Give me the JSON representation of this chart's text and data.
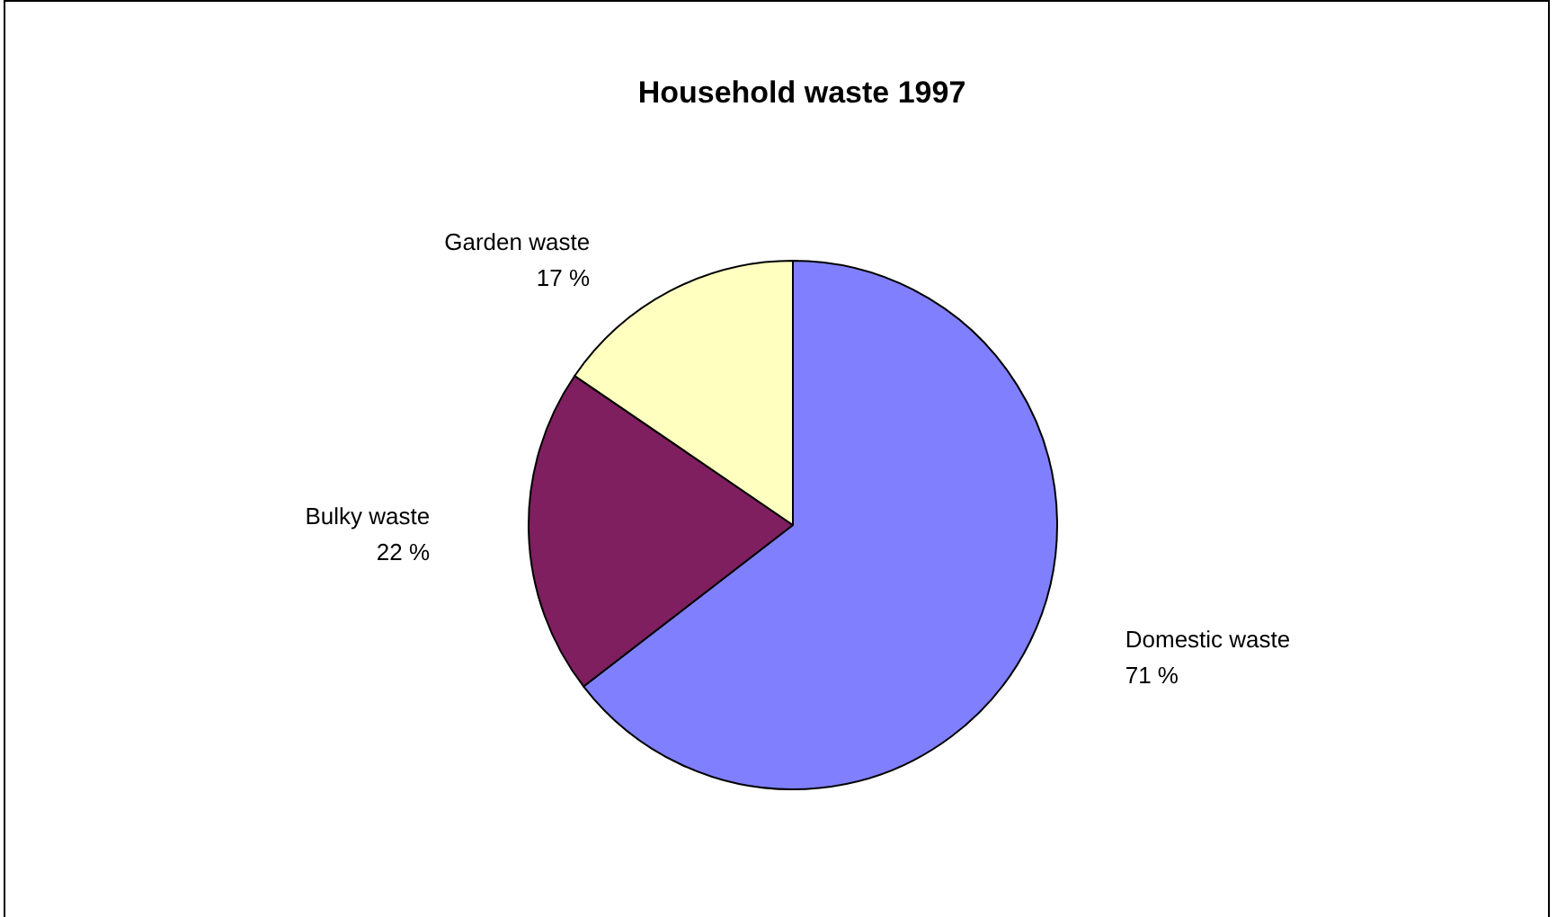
{
  "chart_data": {
    "type": "pie",
    "title": "Household waste 1997",
    "categories": [
      "Domestic waste",
      "Bulky waste",
      "Garden waste"
    ],
    "values": [
      71,
      22,
      17
    ],
    "value_labels": [
      "71 %",
      "22 %",
      "17 %"
    ],
    "colors": [
      "#8080ff",
      "#7f1f5f",
      "#ffffc0"
    ],
    "legend": false
  }
}
